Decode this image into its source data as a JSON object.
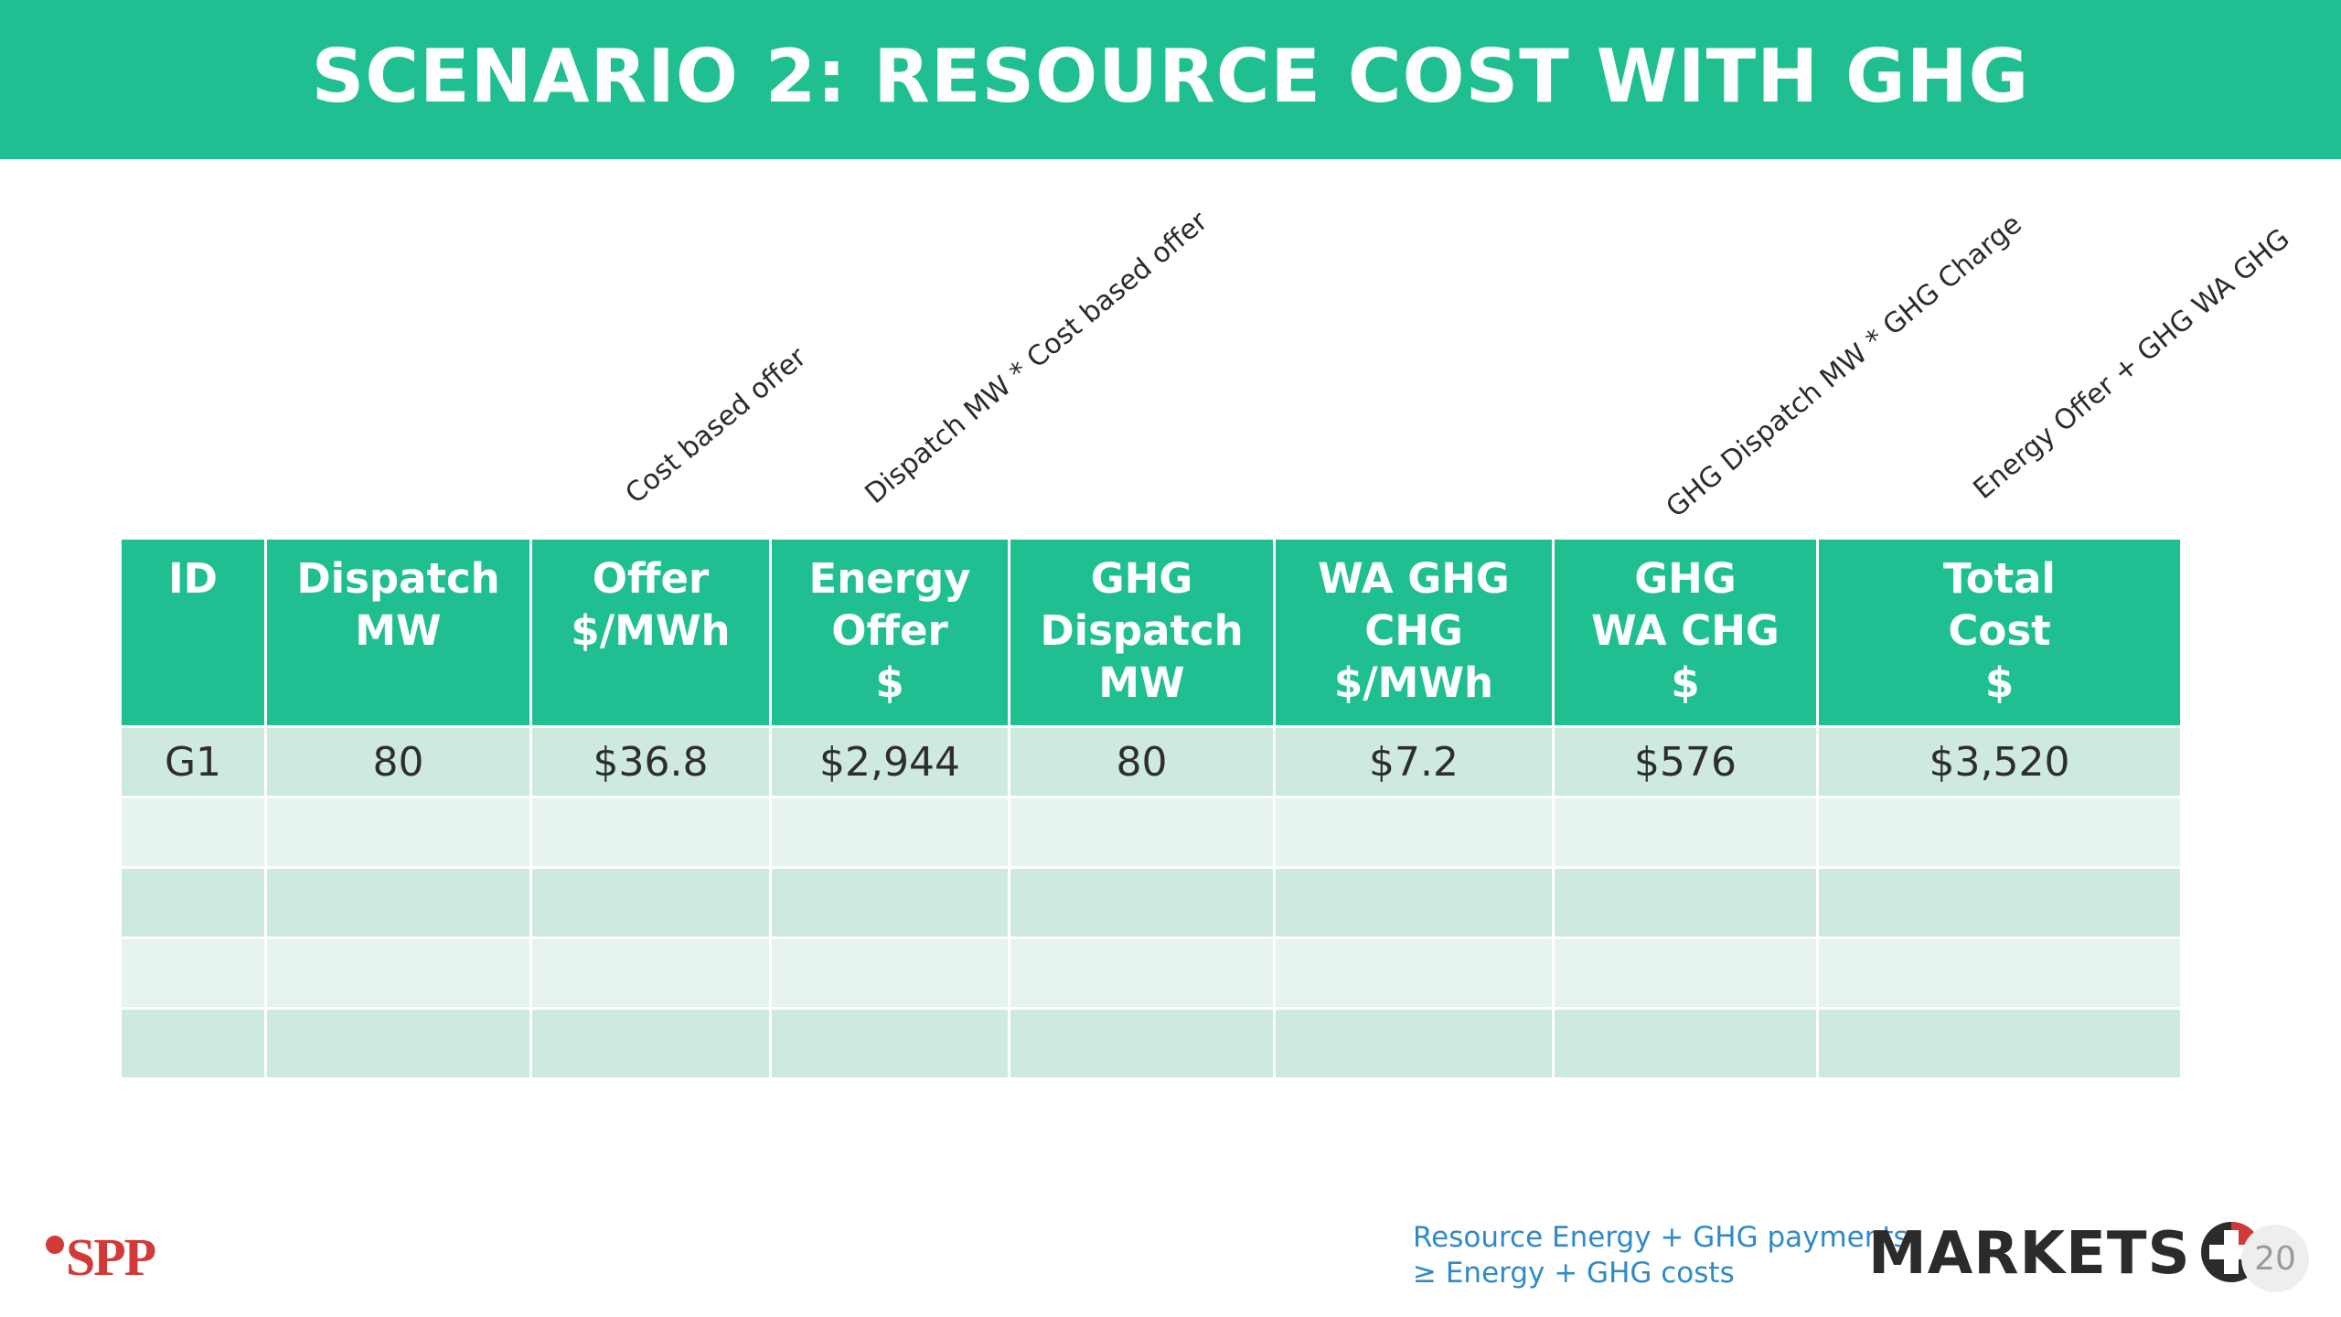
{
  "title": "SCENARIO 2:  RESOURCE COST WITH GHG",
  "annotations": [
    "Cost based offer",
    "Dispatch MW * Cost based offer",
    "GHG Dispatch MW * GHG Charge",
    "Energy Offer + GHG WA GHG"
  ],
  "table": {
    "headers": [
      [
        "ID"
      ],
      [
        "Dispatch",
        "MW"
      ],
      [
        "Offer",
        "$/MWh"
      ],
      [
        "Energy",
        "Offer",
        "$"
      ],
      [
        "GHG",
        "Dispatch",
        "MW"
      ],
      [
        "WA GHG",
        "CHG",
        "$/MWh"
      ],
      [
        "GHG",
        "WA CHG",
        "$"
      ],
      [
        "Total",
        "Cost",
        "$"
      ]
    ],
    "rows": [
      [
        "G1",
        "80",
        "$36.8",
        "$2,944",
        "80",
        "$7.2",
        "$576",
        "$3,520"
      ],
      [
        "",
        "",
        "",
        "",
        "",
        "",
        "",
        ""
      ],
      [
        "",
        "",
        "",
        "",
        "",
        "",
        "",
        ""
      ],
      [
        "",
        "",
        "",
        "",
        "",
        "",
        "",
        ""
      ],
      [
        "",
        "",
        "",
        "",
        "",
        "",
        "",
        ""
      ]
    ]
  },
  "footer": {
    "logo_text": "SPP",
    "note_line1": "Resource Energy + GHG payments",
    "note_line2": "≥ Energy + GHG costs",
    "brand": "MARKETS",
    "brand_icon": "plus-icon",
    "page_number": "20"
  },
  "colors": {
    "accent": "#20bf91",
    "row_dark": "#cee9dd",
    "row_light": "#e6f4ed",
    "spp_red": "#d23a3a",
    "note_blue": "#2f8ac8"
  }
}
